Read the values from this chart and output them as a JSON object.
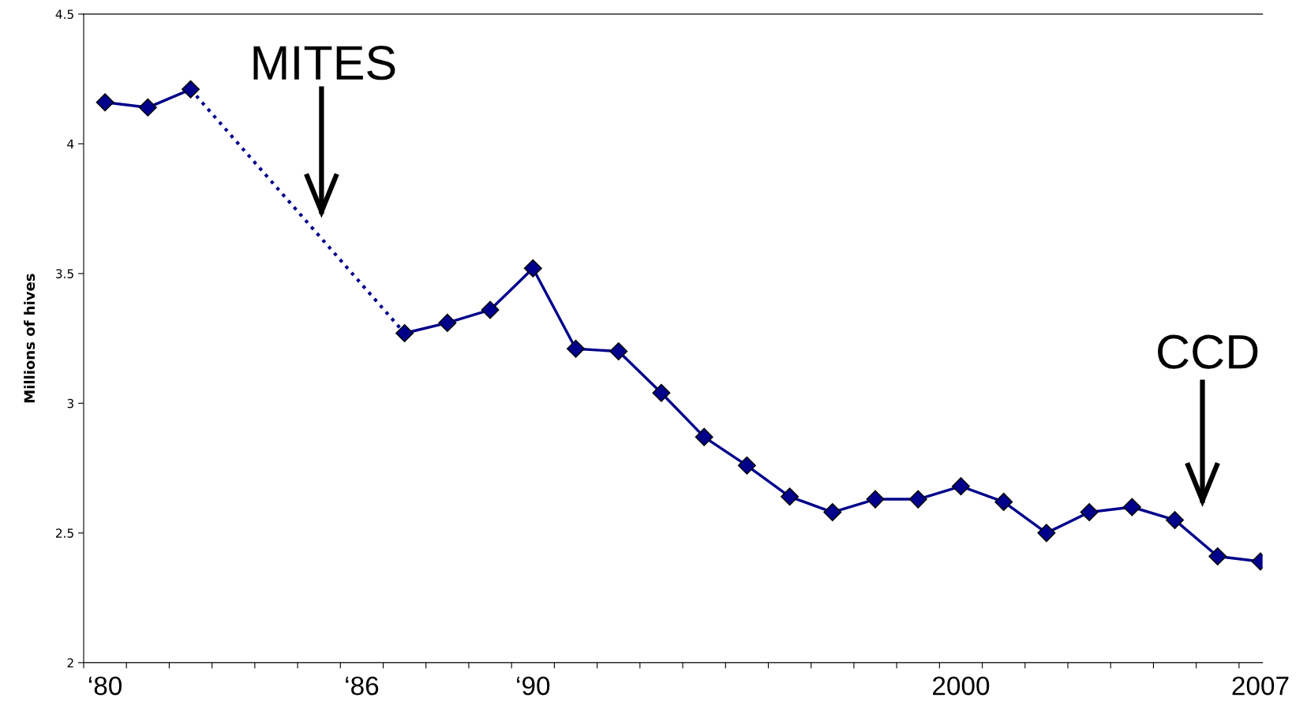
{
  "chart_data": {
    "type": "line",
    "ylabel": "Millions of hives",
    "categories": [
      "‘80",
      null,
      null,
      null,
      null,
      null,
      "‘86",
      null,
      null,
      null,
      "‘90",
      null,
      null,
      null,
      null,
      null,
      null,
      null,
      null,
      null,
      "2000",
      null,
      null,
      null,
      null,
      null,
      null,
      "2007"
    ],
    "series": [
      {
        "color": "#00008b",
        "line_style": "dotted",
        "marker": "none",
        "values": [
          null,
          null,
          4.21,
          null,
          null,
          null,
          null,
          3.27,
          null,
          null,
          null,
          null,
          null,
          null,
          null,
          null,
          null,
          null,
          null,
          null,
          null,
          null,
          null,
          null,
          null,
          null,
          null,
          null
        ]
      },
      {
        "color": "#00008b",
        "line_style": "solid",
        "marker": "diamond",
        "values": [
          4.16,
          4.14,
          4.21,
          null,
          null,
          null,
          null,
          3.27,
          3.31,
          3.36,
          3.52,
          3.21,
          3.2,
          3.04,
          2.87,
          2.76,
          2.64,
          2.58,
          2.63,
          2.63,
          2.68,
          2.62,
          2.5,
          2.58,
          2.6,
          2.55,
          2.41,
          2.39
        ]
      }
    ],
    "ylim": [
      2,
      4.5
    ],
    "yticks": [
      2,
      2.5,
      3,
      3.5,
      4,
      4.5
    ],
    "annotations": [
      "MITES",
      "CCD"
    ],
    "grid": false,
    "legend": false
  }
}
